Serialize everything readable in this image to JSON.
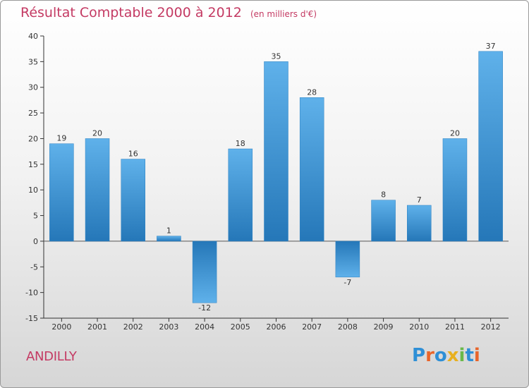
{
  "header": {
    "title": "Résultat Comptable 2000 à 2012",
    "unit": "(en milliers d'€)"
  },
  "footer": {
    "commune": "ANDILLY",
    "brand": "Proxiti",
    "brand_letters": [
      {
        "ch": "P",
        "color": "#2e8fd6"
      },
      {
        "ch": "r",
        "color": "#e8652a"
      },
      {
        "ch": "o",
        "color": "#2e8fd6"
      },
      {
        "ch": "x",
        "color": "#e8b020"
      },
      {
        "ch": "i",
        "color": "#6ab94a"
      },
      {
        "ch": "t",
        "color": "#2e8fd6"
      },
      {
        "ch": "i",
        "color": "#e8652a"
      }
    ]
  },
  "colors": {
    "title": "#c43a63",
    "bar_light": "#5fb1ea",
    "bar_dark": "#2577b8"
  },
  "chart_data": {
    "type": "bar",
    "title": "Résultat Comptable 2000 à 2012",
    "subtitle": "(en milliers d'€)",
    "categories": [
      "2000",
      "2001",
      "2002",
      "2003",
      "2004",
      "2005",
      "2006",
      "2007",
      "2008",
      "2009",
      "2010",
      "2011",
      "2012"
    ],
    "values": [
      19,
      20,
      16,
      1,
      -12,
      18,
      35,
      28,
      -7,
      8,
      7,
      20,
      37
    ],
    "ylim": [
      -15,
      40
    ],
    "yticks": [
      40,
      35,
      30,
      25,
      20,
      15,
      10,
      5,
      0,
      -5,
      -10,
      -15
    ],
    "grid": false,
    "xlabel": "",
    "ylabel": ""
  }
}
